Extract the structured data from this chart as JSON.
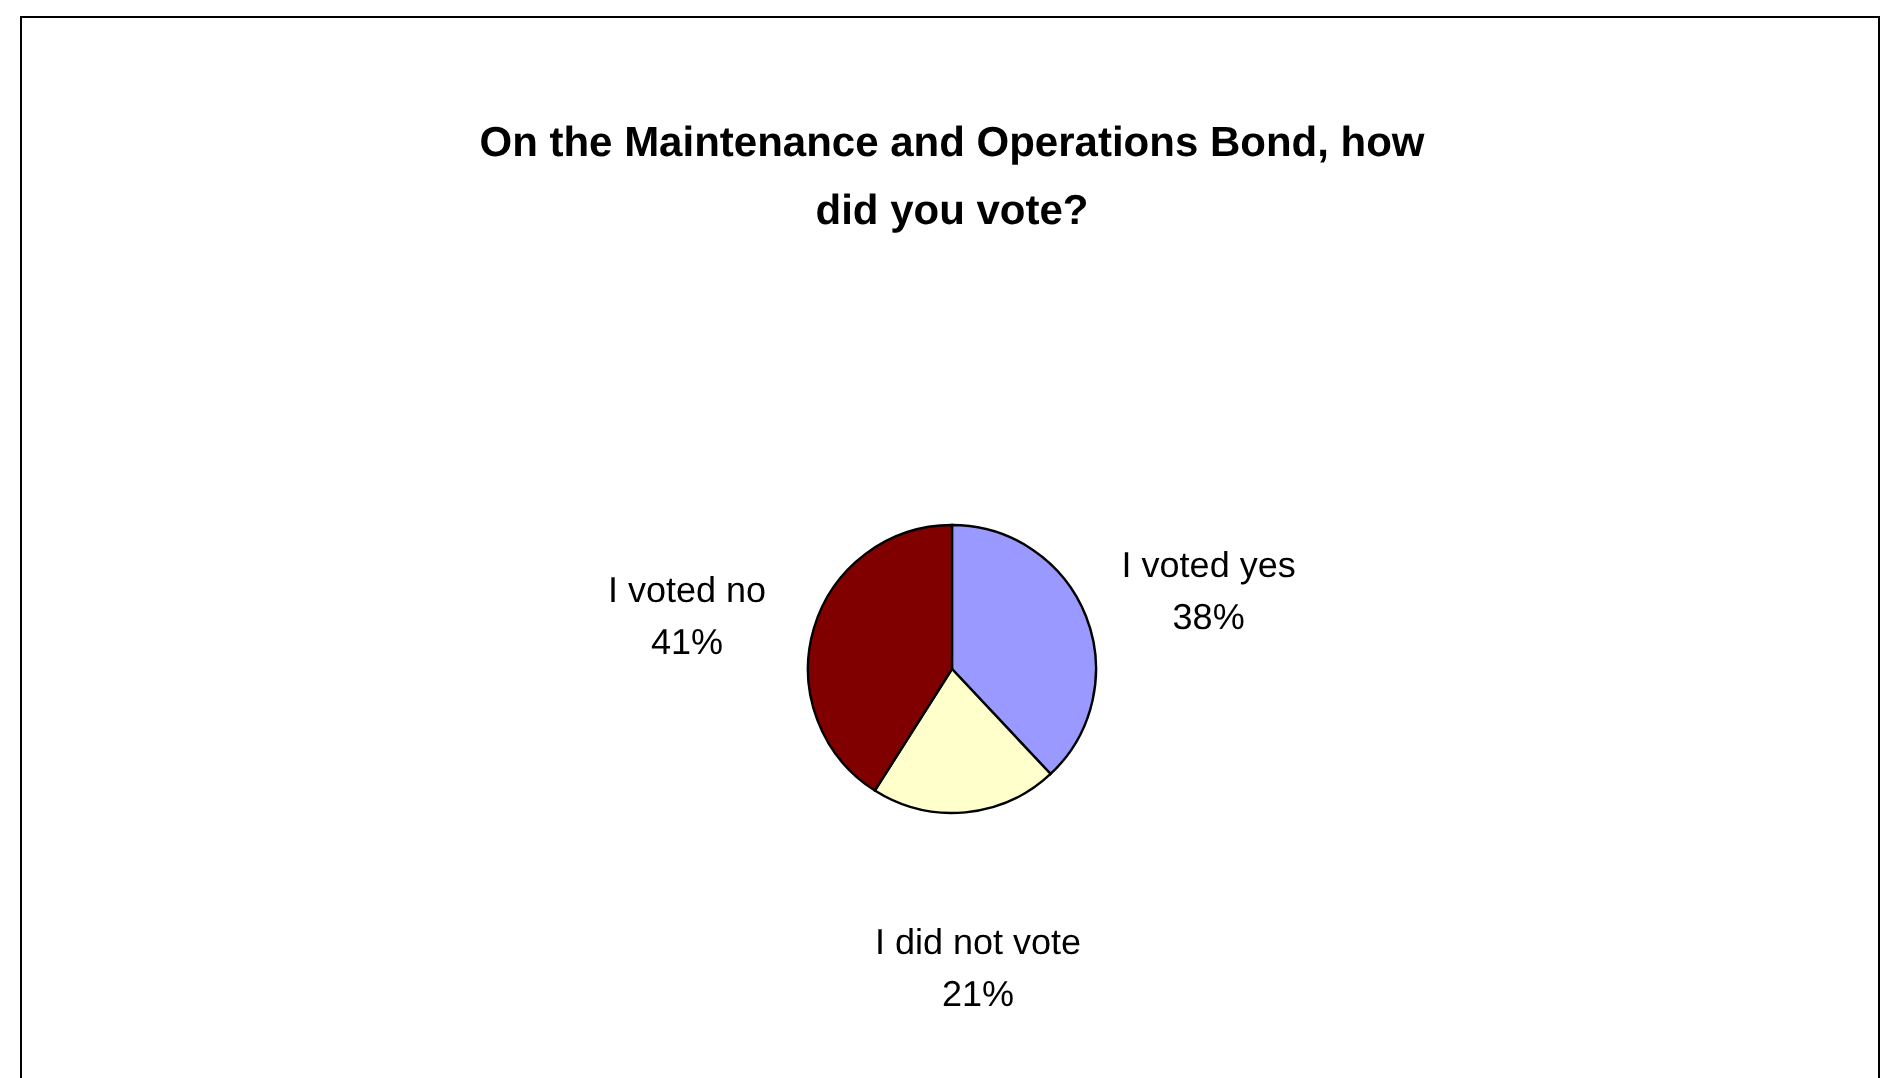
{
  "chart_data": {
    "type": "pie",
    "title": "On the Maintenance and Operations Bond, how did you vote?",
    "categories": [
      "I voted yes",
      "I did not vote",
      "I voted no"
    ],
    "values": [
      38,
      21,
      41
    ],
    "value_labels": [
      "38%",
      "21%",
      "41%"
    ],
    "colors": [
      "#9999ff",
      "#ffffcc",
      "#800000"
    ]
  }
}
